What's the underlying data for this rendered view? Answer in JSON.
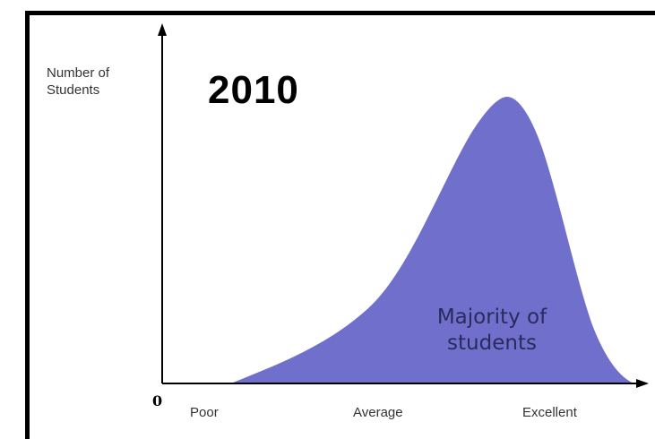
{
  "diagram": {
    "year_title": "2010",
    "y_axis_label": "Number of\nStudents",
    "origin_label": "0",
    "x_ticks": [
      "Poor",
      "Average",
      "Excellent"
    ],
    "annotation": "Majority of\nstudents",
    "curve_color": "#7070cc",
    "axis_color": "#000000",
    "distribution": "left-skewed, peak near Excellent"
  }
}
